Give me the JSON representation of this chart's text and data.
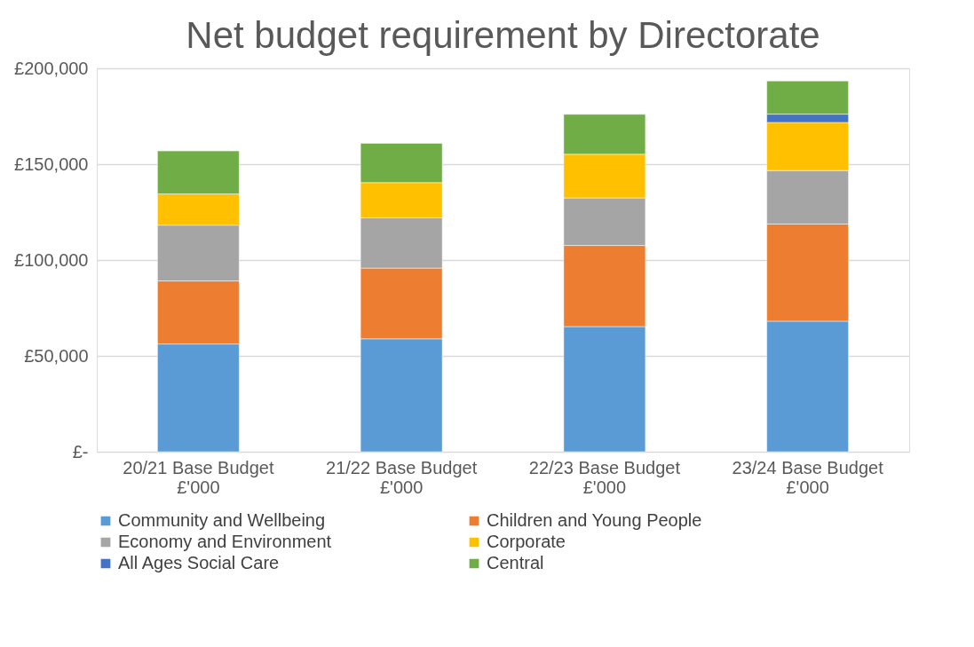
{
  "chart_data": {
    "type": "bar",
    "title": "Net budget requirement by Directorate",
    "stacked": true,
    "categories": [
      "20/21 Base Budget £'000",
      "21/22 Base Budget £'000",
      "22/23 Base Budget £'000",
      "23/24 Base Budget £'000"
    ],
    "series": [
      {
        "name": "Community and Wellbeing",
        "color": "#5b9bd5",
        "values": [
          56200,
          58900,
          65300,
          68100
        ]
      },
      {
        "name": "Children and Young People",
        "color": "#ed7d31",
        "values": [
          32900,
          36900,
          42300,
          50700
        ]
      },
      {
        "name": "Economy and Environment",
        "color": "#a5a5a5",
        "values": [
          29100,
          26200,
          24800,
          27900
        ]
      },
      {
        "name": "Corporate",
        "color": "#ffc000",
        "values": [
          16300,
          18400,
          22800,
          25100
        ]
      },
      {
        "name": "All Ages Social Care",
        "color": "#4472c4",
        "values": [
          null,
          null,
          null,
          4300
        ]
      },
      {
        "name": "Central",
        "color": "#70ad47",
        "values": [
          22400,
          20500,
          20800,
          17300
        ]
      }
    ],
    "ylim": [
      0,
      200000
    ],
    "yticks": [
      {
        "value": 0,
        "label": "£-"
      },
      {
        "value": 50000,
        "label": "£50,000"
      },
      {
        "value": 100000,
        "label": "£100,000"
      },
      {
        "value": 150000,
        "label": "£150,000"
      },
      {
        "value": 200000,
        "label": "£200,000"
      }
    ],
    "grid": "y",
    "legend": "bottom"
  }
}
